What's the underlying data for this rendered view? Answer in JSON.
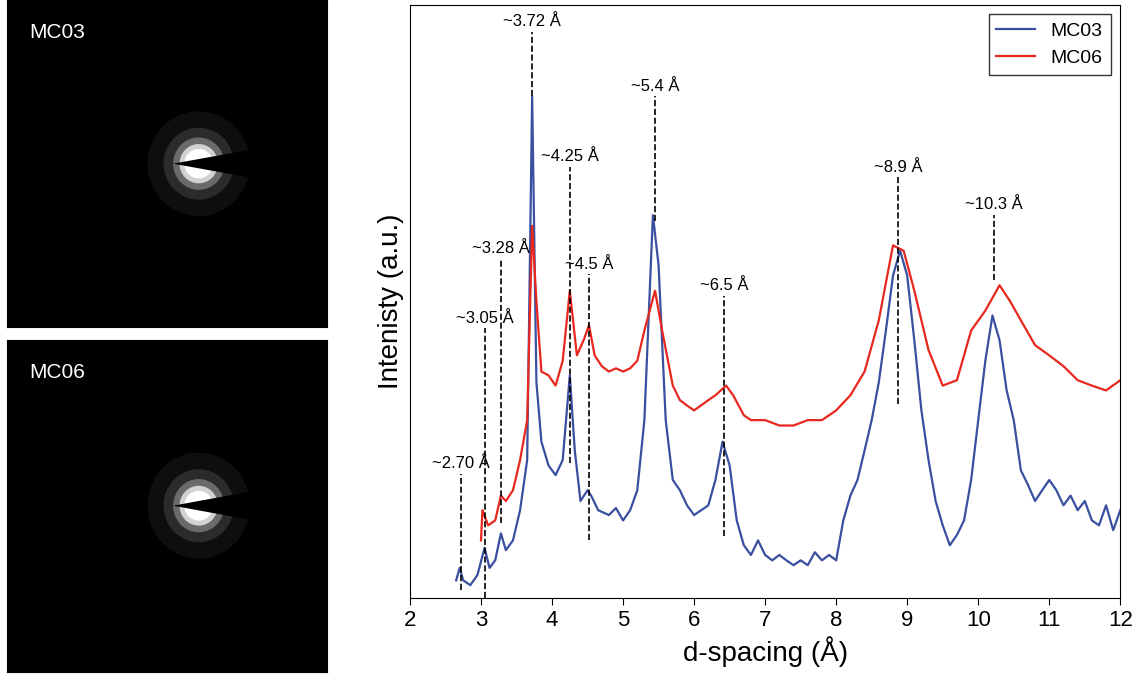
{
  "images": [
    {
      "label": "MC03"
    },
    {
      "label": "MC06"
    }
  ],
  "chart_data": {
    "type": "line",
    "x_label": "d-spacing (Å)",
    "y_label": "Intenisty (a.u.)",
    "xlim": [
      2,
      12
    ],
    "xticks": [
      2,
      3,
      4,
      5,
      6,
      7,
      8,
      9,
      10,
      11,
      12
    ],
    "ylim": [
      0,
      110
    ],
    "tick_labels": "x",
    "legend": "upper right",
    "series": [
      {
        "name": "MC03",
        "color": "#3a4fa0",
        "x": [
          2.65,
          2.7,
          2.75,
          2.85,
          2.95,
          3.05,
          3.12,
          3.2,
          3.28,
          3.35,
          3.45,
          3.55,
          3.65,
          3.72,
          3.78,
          3.85,
          3.95,
          4.05,
          4.15,
          4.25,
          4.32,
          4.4,
          4.5,
          4.55,
          4.65,
          4.8,
          4.9,
          5.0,
          5.1,
          5.2,
          5.3,
          5.42,
          5.5,
          5.6,
          5.7,
          5.8,
          5.9,
          6.0,
          6.1,
          6.2,
          6.3,
          6.4,
          6.5,
          6.6,
          6.7,
          6.8,
          6.9,
          7.0,
          7.1,
          7.2,
          7.3,
          7.4,
          7.5,
          7.6,
          7.7,
          7.8,
          7.9,
          8.0,
          8.1,
          8.2,
          8.3,
          8.4,
          8.5,
          8.6,
          8.7,
          8.8,
          8.9,
          9.0,
          9.1,
          9.2,
          9.3,
          9.4,
          9.5,
          9.6,
          9.7,
          9.8,
          9.9,
          10.0,
          10.1,
          10.2,
          10.3,
          10.4,
          10.5,
          10.6,
          10.7,
          10.8,
          10.9,
          11.0,
          11.1,
          11.2,
          11.3,
          11.4,
          11.5,
          11.6,
          11.7,
          11.8,
          11.9,
          12.0
        ],
        "values": [
          3.3,
          5.6,
          3.3,
          2.4,
          4.3,
          9.3,
          5.6,
          7,
          12,
          8.9,
          10.7,
          16.3,
          25.6,
          93,
          40,
          29,
          24.6,
          22.8,
          25.6,
          41.3,
          27.4,
          18,
          20,
          19,
          16.3,
          15.4,
          16.7,
          14.4,
          16.3,
          20,
          33,
          71,
          61.7,
          33,
          21.9,
          20,
          17.2,
          15.4,
          16.3,
          17.2,
          21.9,
          29,
          24.6,
          14.4,
          9.8,
          8,
          10.7,
          8,
          7,
          8,
          7,
          6.1,
          7,
          6.1,
          8.5,
          7,
          8,
          7,
          14.4,
          19,
          21.9,
          27.4,
          33,
          40,
          49.6,
          59.8,
          64.4,
          59.8,
          47.8,
          34.8,
          25.6,
          18,
          13.5,
          9.8,
          11.7,
          14.4,
          21.9,
          33,
          44,
          52.4,
          47.8,
          38.5,
          33,
          23.7,
          21,
          18,
          20,
          21.9,
          20,
          17.2,
          19,
          16.3,
          18,
          14.4,
          13.5,
          17.2,
          12.6,
          16.3
        ]
      },
      {
        "name": "MC06",
        "color": "#e8281e",
        "x": [
          3.0,
          3.02,
          3.1,
          3.2,
          3.28,
          3.35,
          3.45,
          3.55,
          3.65,
          3.72,
          3.78,
          3.85,
          3.95,
          4.05,
          4.15,
          4.25,
          4.35,
          4.45,
          4.52,
          4.6,
          4.7,
          4.8,
          4.9,
          5.0,
          5.1,
          5.2,
          5.3,
          5.45,
          5.55,
          5.7,
          5.8,
          5.9,
          6.0,
          6.2,
          6.3,
          6.45,
          6.55,
          6.7,
          6.8,
          7.0,
          7.2,
          7.4,
          7.6,
          7.8,
          8.0,
          8.2,
          8.4,
          8.6,
          8.8,
          8.95,
          9.1,
          9.3,
          9.5,
          9.7,
          9.9,
          10.1,
          10.3,
          10.45,
          10.6,
          10.8,
          11.0,
          11.2,
          11.4,
          11.6,
          11.8,
          12.0
        ],
        "values": [
          10.7,
          16.3,
          13.5,
          14.4,
          19,
          18,
          20,
          25.6,
          33,
          69,
          55,
          42,
          41.3,
          39.4,
          44,
          57,
          45,
          48,
          50.6,
          45,
          43,
          42,
          42.6,
          42,
          42.6,
          44,
          49.6,
          57,
          49.6,
          39.4,
          36.7,
          35.7,
          34.8,
          36.7,
          37.6,
          39.4,
          37.6,
          33.9,
          33,
          33,
          32,
          32,
          33,
          33,
          34.8,
          37.6,
          42,
          51.5,
          65.4,
          64.4,
          57,
          46,
          39.4,
          40.4,
          49.6,
          53.3,
          58,
          55,
          51.5,
          46.9,
          45,
          43,
          40.4,
          39.4,
          38.5,
          40.4
        ]
      }
    ],
    "annotations": [
      {
        "text": "~2.70 Å",
        "x": 2.72,
        "y": 23,
        "ymin": 1.5
      },
      {
        "text": "~3.05 Å",
        "x": 3.05,
        "y": 50,
        "ymin": 0
      },
      {
        "text": "~3.28 Å",
        "x": 3.28,
        "y": 63,
        "ymin": 14
      },
      {
        "text": "~3.72 Å",
        "x": 3.72,
        "y": 105,
        "ymin": 93
      },
      {
        "text": "~4.25 Å",
        "x": 4.25,
        "y": 80,
        "ymin": 25
      },
      {
        "text": "~4.5 Å",
        "x": 4.52,
        "y": 60,
        "ymin": 10.7
      },
      {
        "text": "~5.4 Å",
        "x": 5.45,
        "y": 93,
        "ymin": 70
      },
      {
        "text": "~6.5 Å",
        "x": 6.42,
        "y": 56,
        "ymin": 11.5
      },
      {
        "text": "~8.9 Å",
        "x": 8.87,
        "y": 78,
        "ymin": 36
      },
      {
        "text": "~10.3 Å",
        "x": 10.22,
        "y": 71,
        "ymin": 59
      }
    ]
  }
}
